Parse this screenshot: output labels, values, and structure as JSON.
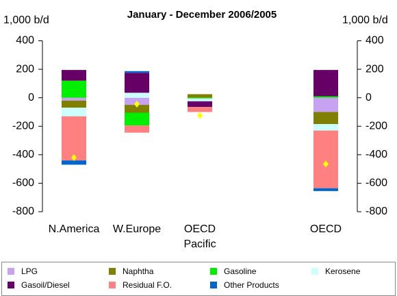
{
  "chart_data": {
    "type": "stacked-bar",
    "title": "January - December 2006/2005",
    "y_label": "1,000 b/d",
    "y2_label": "1,000 b/d",
    "categories": [
      "N.America",
      "W.Europe",
      "OECD\nPacific",
      null,
      "OECD"
    ],
    "series": [
      {
        "name": "LPG",
        "color": "#c8a2f2",
        "values": [
          -20,
          -50,
          0,
          null,
          -100
        ]
      },
      {
        "name": "Naphtha",
        "color": "#808000",
        "values": [
          -50,
          -55,
          25,
          null,
          -85
        ]
      },
      {
        "name": "Gasoline",
        "color": "#00ee00",
        "values": [
          120,
          -90,
          -5,
          null,
          10
        ]
      },
      {
        "name": "Kerosene",
        "color": "#ccffff",
        "values": [
          -60,
          35,
          -20,
          null,
          -45
        ]
      },
      {
        "name": "Gasoil/Diesel",
        "color": "#660066",
        "values": [
          75,
          140,
          -40,
          null,
          185
        ]
      },
      {
        "name": "Residual F.O.",
        "color": "#ff8080",
        "values": [
          -310,
          -50,
          -35,
          null,
          -405
        ]
      },
      {
        "name": "Other Products",
        "color": "#0066cc",
        "values": [
          -30,
          12,
          0,
          null,
          -20
        ]
      }
    ],
    "markers": {
      "color": "#ffff00",
      "values": [
        -420,
        -45,
        -125,
        null,
        -465
      ]
    },
    "ylim": [
      -800,
      400
    ],
    "yticks": [
      {
        "value": -800,
        "label": "-800"
      },
      -600,
      -400,
      -200,
      0,
      200,
      400
    ],
    "y2lim": [
      -800,
      400
    ],
    "y2ticks": [
      {
        "value": -800,
        "label": "-800"
      },
      -600,
      -400,
      -200,
      0,
      200,
      400
    ]
  }
}
